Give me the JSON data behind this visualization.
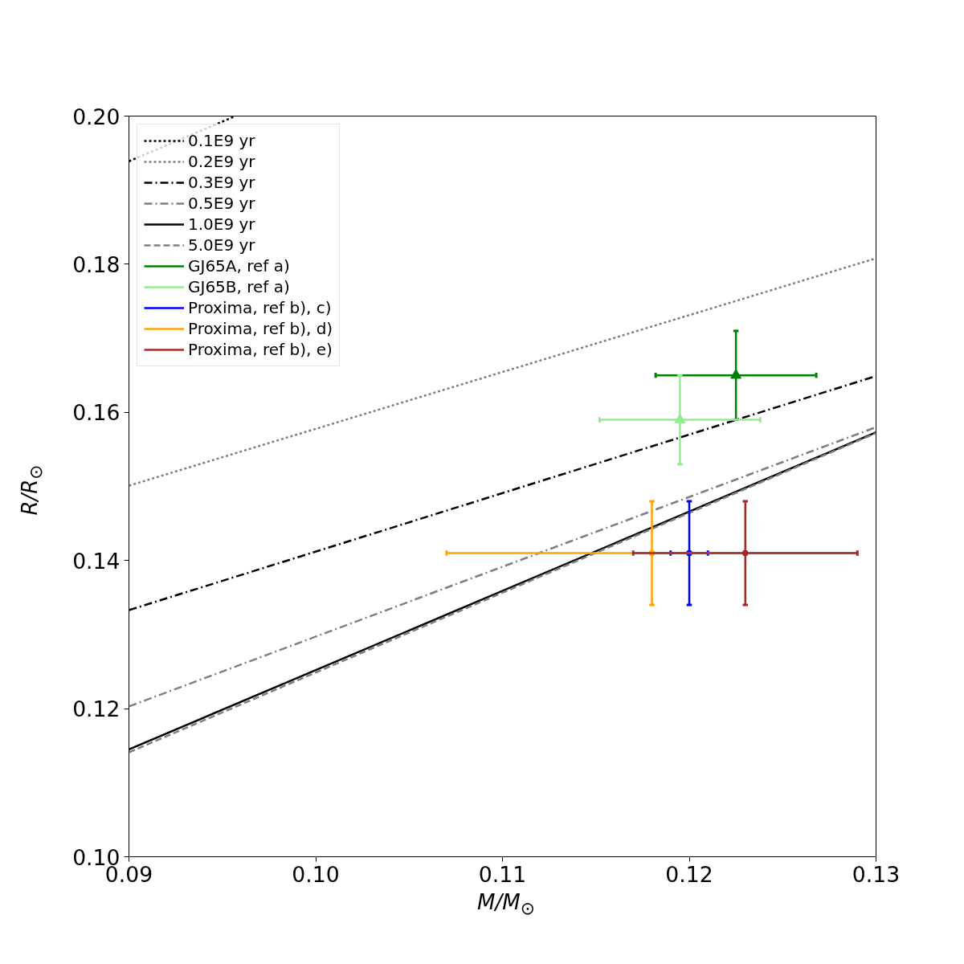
{
  "chart_data": {
    "type": "scatter",
    "xlabel": "M/M$_{⊙}$",
    "ylabel": "R/R$_{⊙}$",
    "xlim": [
      0.09,
      0.13
    ],
    "ylim": [
      0.1,
      0.2
    ],
    "xticks": [
      {
        "value": 0.09,
        "label": "0.09"
      },
      {
        "value": 0.1,
        "label": "0.10"
      },
      {
        "value": 0.11,
        "label": "0.11"
      },
      {
        "value": 0.12,
        "label": "0.12"
      },
      {
        "value": 0.13,
        "label": "0.13"
      }
    ],
    "yticks": [
      {
        "value": 0.1,
        "label": "0.10"
      },
      {
        "value": 0.12,
        "label": "0.12"
      },
      {
        "value": 0.14,
        "label": "0.14"
      },
      {
        "value": 0.16,
        "label": "0.16"
      },
      {
        "value": 0.18,
        "label": "0.18"
      },
      {
        "value": 0.2,
        "label": "0.20"
      }
    ],
    "grid": false,
    "legend": "top left",
    "series": [
      {
        "name": "0.1E9 yr",
        "type": "line",
        "color": "#000000",
        "line_style": "dotted",
        "x": [
          0.09,
          0.0957
        ],
        "values": [
          0.1939,
          0.2
        ]
      },
      {
        "name": "0.2E9 yr",
        "type": "line",
        "color": "#808080",
        "line_style": "dotted",
        "x": [
          0.09,
          0.13
        ],
        "values": [
          0.1501,
          0.1808
        ]
      },
      {
        "name": "0.3E9 yr",
        "type": "line",
        "color": "#000000",
        "line_style": "dashdot",
        "x": [
          0.09,
          0.13
        ],
        "values": [
          0.1333,
          0.1649
        ]
      },
      {
        "name": "0.5E9 yr",
        "type": "line",
        "color": "#808080",
        "line_style": "dashdot",
        "x": [
          0.09,
          0.13
        ],
        "values": [
          0.1203,
          0.158
        ]
      },
      {
        "name": "1.0E9 yr",
        "type": "line",
        "color": "#000000",
        "line_style": "solid",
        "x": [
          0.09,
          0.13
        ],
        "values": [
          0.1145,
          0.1573
        ]
      },
      {
        "name": "5.0E9 yr",
        "type": "line",
        "color": "#808080",
        "line_style": "dashed",
        "x": [
          0.09,
          0.13
        ],
        "values": [
          0.1141,
          0.1572
        ]
      },
      {
        "name": "GJ65A, ref a)",
        "marker": "triangle",
        "color": "#008000",
        "x": [
          0.1225
        ],
        "values": [
          0.165
        ],
        "errors": [
          0.006
        ],
        "xerrors": [
          0.0043
        ]
      },
      {
        "name": "GJ65B, ref a)",
        "marker": "triangle",
        "color": "#90ee90",
        "x": [
          0.1195
        ],
        "values": [
          0.159
        ],
        "errors": [
          0.006
        ],
        "xerrors": [
          0.0043
        ]
      },
      {
        "name": "Proxima, ref b), c)",
        "marker": "circle",
        "color": "#0000ff",
        "x": [
          0.12
        ],
        "values": [
          0.141
        ],
        "errors": [
          0.007
        ],
        "xerrors": [
          0.001
        ]
      },
      {
        "name": "Proxima, ref b), d)",
        "marker": "circle",
        "color": "#ffa500",
        "x": [
          0.118
        ],
        "values": [
          0.141
        ],
        "errors": [
          0.007
        ],
        "xerrors": [
          0.011
        ]
      },
      {
        "name": "Proxima, ref b), e)",
        "marker": "circle",
        "color": "#a52a2a",
        "x": [
          0.123
        ],
        "values": [
          0.141
        ],
        "errors": [
          0.007
        ],
        "xerrors": [
          0.006
        ]
      }
    ]
  }
}
